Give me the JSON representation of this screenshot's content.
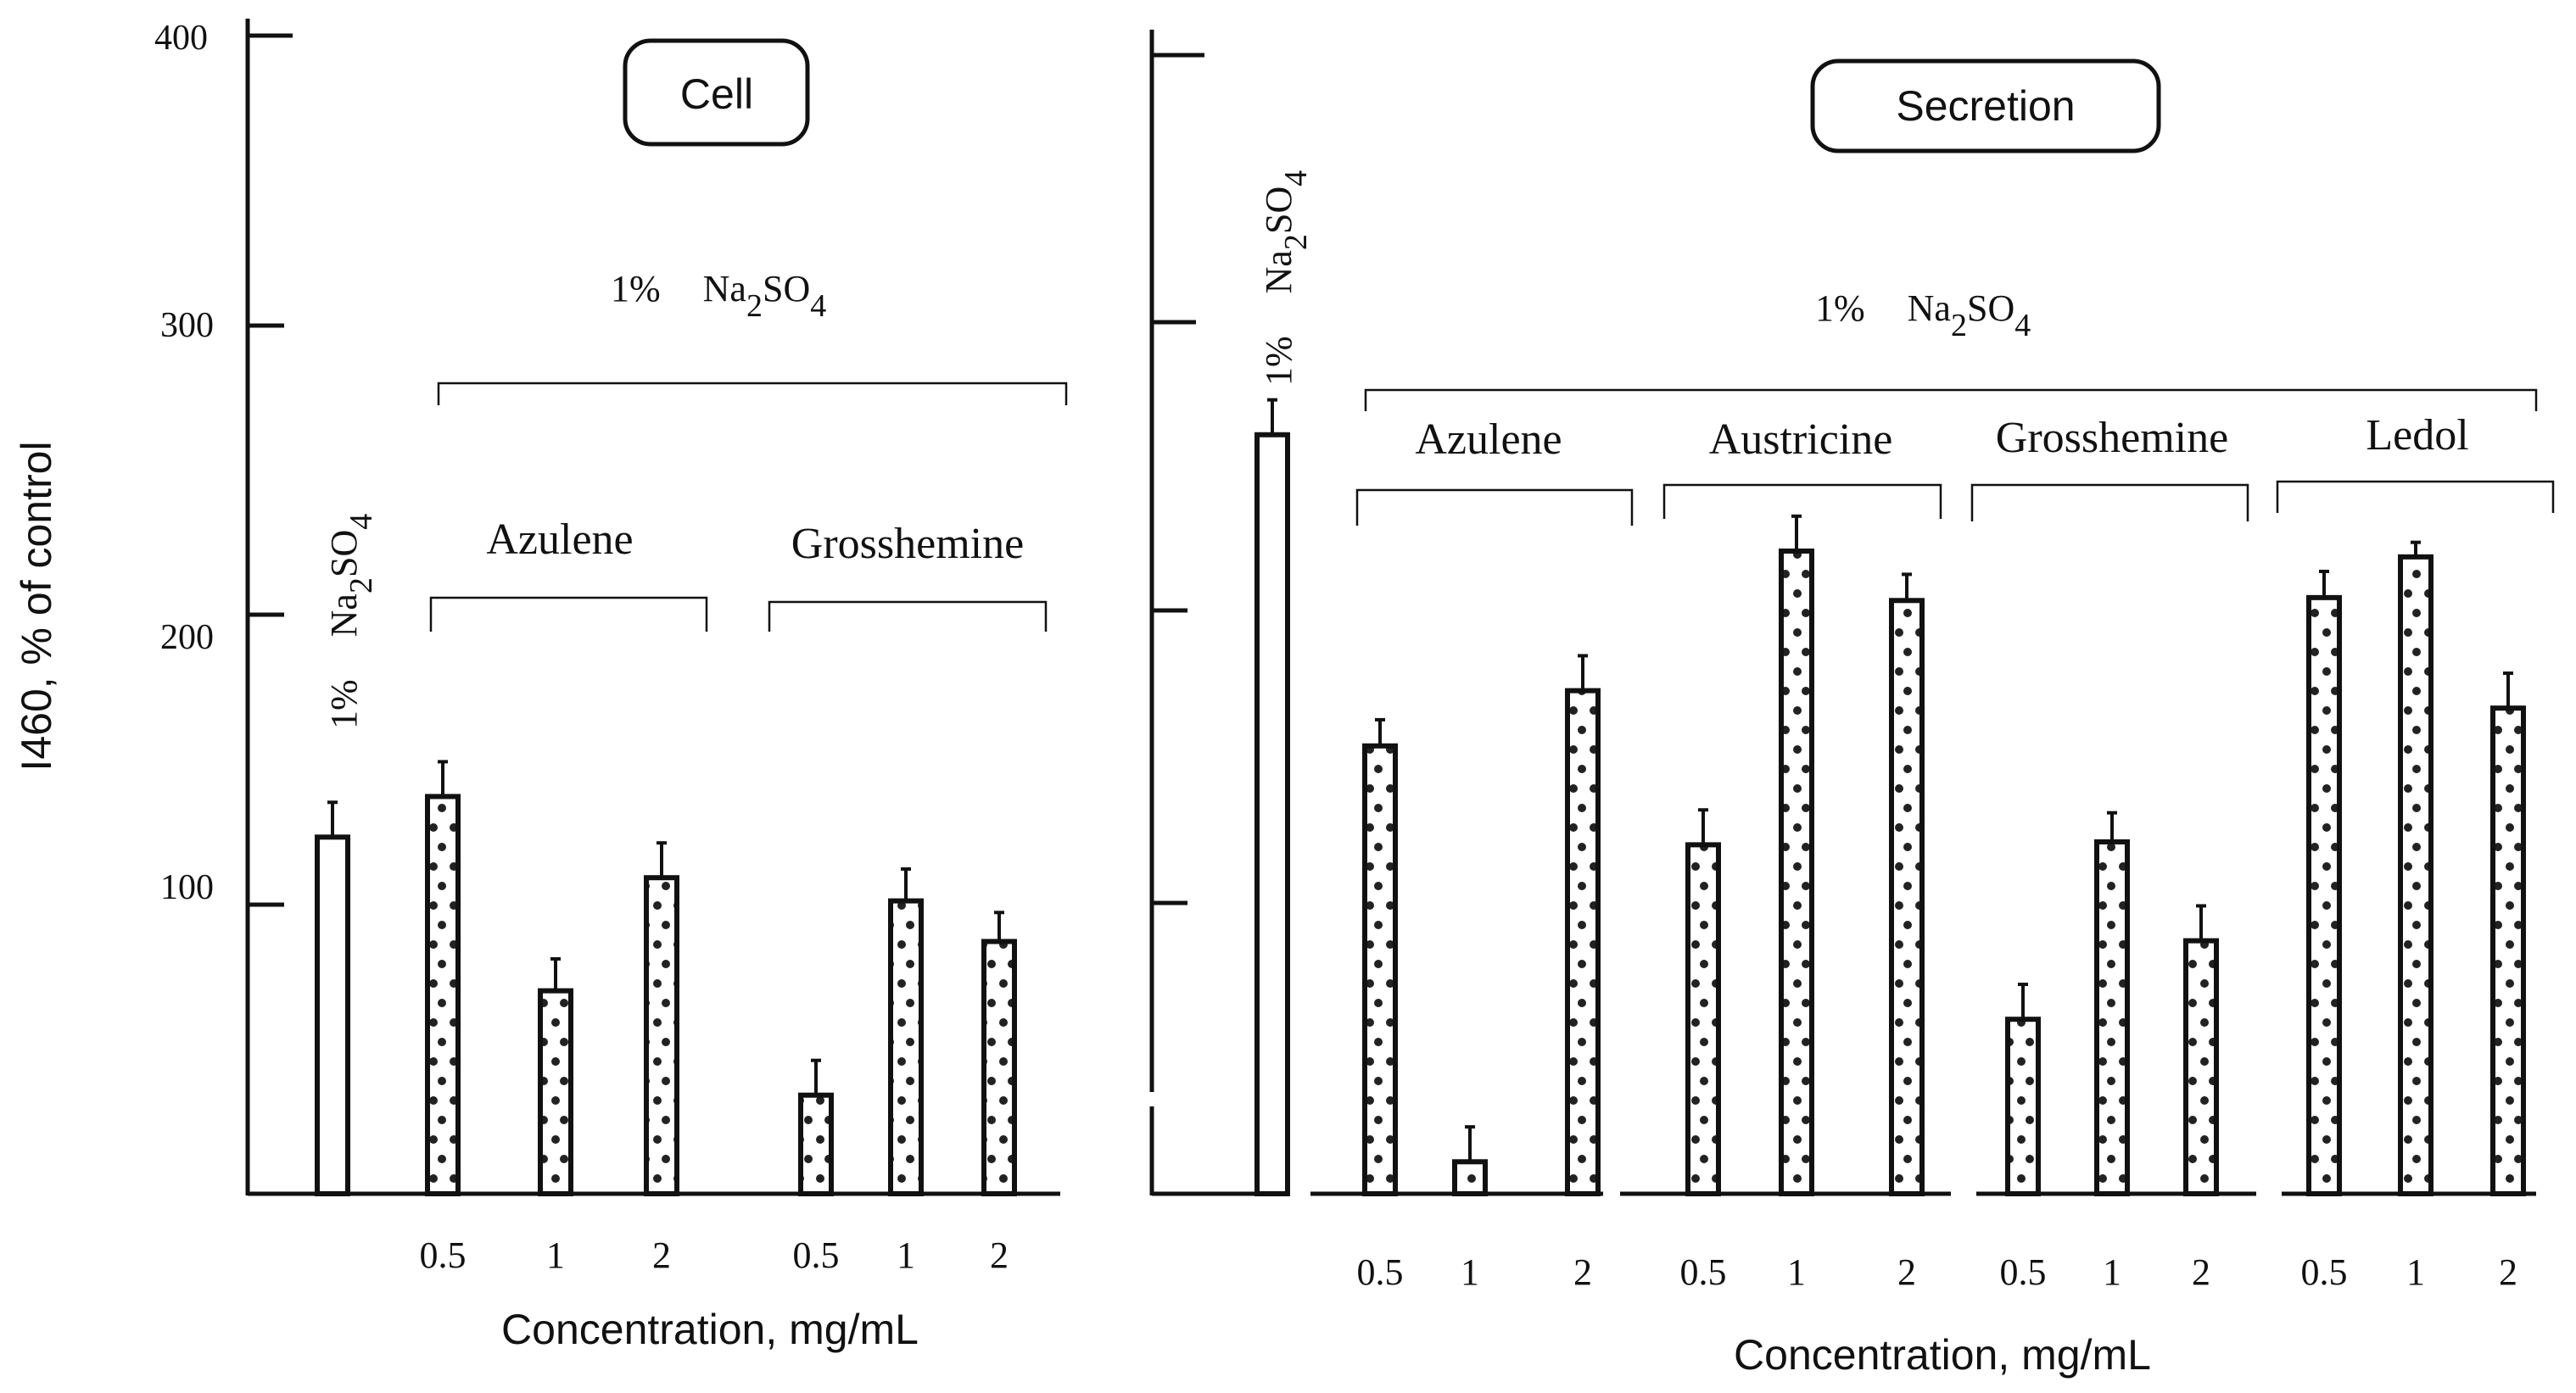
{
  "chart_data": [
    {
      "type": "bar",
      "title": "Cell",
      "ylabel": "I460, % of control",
      "xlabel": "Concentration, mg/mL",
      "yticks": [
        "100",
        "200",
        "300",
        "400"
      ],
      "ylim": [
        0,
        400
      ],
      "bracket_label": "1% Na2SO4",
      "bracket_label_parts": {
        "percent": "1%",
        "na": "Na",
        "sub2": "2",
        "so": "SO",
        "sub4": "4"
      },
      "control": {
        "label_parts": {
          "percent": "1%",
          "na": "Na",
          "sub2": "2",
          "so": "SO",
          "sub4": "4"
        },
        "value": 123,
        "error": 12
      },
      "groups": [
        {
          "name": "Azulene",
          "categories": [
            "0.5",
            "1",
            "2"
          ],
          "values": [
            137,
            70,
            109
          ],
          "errors": [
            12,
            11,
            12
          ]
        },
        {
          "name": "Grosshemine",
          "categories": [
            "0.5",
            "1",
            "2"
          ],
          "values": [
            34,
            101,
            87
          ],
          "errors": [
            12,
            11,
            10
          ]
        }
      ]
    },
    {
      "type": "bar",
      "title": "Secretion",
      "xlabel": "Concentration, mg/mL",
      "ylim": [
        0,
        400
      ],
      "bracket_label": "1% Na2SO4",
      "bracket_label_parts": {
        "percent": "1%",
        "na": "Na",
        "sub2": "2",
        "so": "SO",
        "sub4": "4"
      },
      "control": {
        "label_parts": {
          "percent": "1%",
          "na": "Na",
          "sub2": "2",
          "so": "SO",
          "sub4": "4"
        },
        "value": 261,
        "error": 12
      },
      "groups": [
        {
          "name": "Azulene",
          "categories": [
            "0.5",
            "1",
            "2"
          ],
          "values": [
            154,
            11,
            173
          ],
          "errors": [
            9,
            12,
            12
          ]
        },
        {
          "name": "Austricine",
          "categories": [
            "0.5",
            "1",
            "2"
          ],
          "values": [
            120,
            221,
            204
          ],
          "errors": [
            12,
            12,
            9
          ]
        },
        {
          "name": "Grosshemine",
          "categories": [
            "0.5",
            "1",
            "2"
          ],
          "values": [
            60,
            121,
            87
          ],
          "errors": [
            12,
            10,
            12
          ]
        },
        {
          "name": "Ledol",
          "categories": [
            "0.5",
            "1",
            "2"
          ],
          "values": [
            205,
            219,
            167
          ],
          "errors": [
            9,
            5,
            12
          ]
        }
      ]
    }
  ]
}
